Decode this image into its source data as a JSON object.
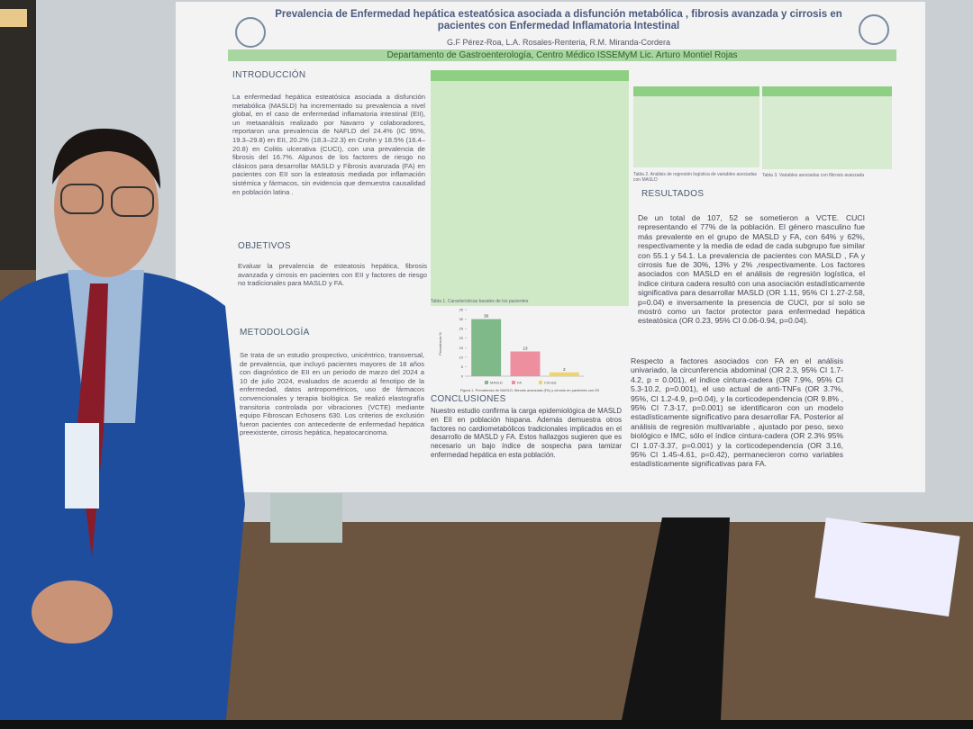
{
  "poster": {
    "title": "Prevalencia de Enfermedad hepática esteatósica asociada a disfunción metabólica , fibrosis avanzada y cirrosis en pacientes con Enfermedad Inflamatoria Intestinal",
    "authors": "G.F Pérez-Roa, L.A. Rosales-Renteria, R.M. Miranda-Cordera",
    "department": "Departamento de Gastroenterología, Centro Médico ISSEMyM Lic. Arturo Montiel Rojas",
    "introduccion": {
      "heading": "INTRODUCCIÓN",
      "text": "La enfermedad hepática esteatósica asociada a disfunción metabólica (MASLD) ha incrementado su prevalencia a nivel global, en el caso de enfermedad inflamatoria intestinal (EII), un metaanálisis realizado por Navarro y colaboradores, reportaron una prevalencia de NAFLD del 24.4% (IC 95%, 19.3–29.8) en EII, 20.2% (18.3–22.3) en Crohn y 18.5% (16.4–20.8) en Colitis ulcerativa (CUCI), con una prevalencia de fibrosis del 16.7%. Algunos de los factores de riesgo no clásicos para desarrollar MASLD y Fibrosis avanzada (FA) en pacientes con EII son la esteatosis mediada por inflamación sistémica y fármacos, sin evidencia que demuestra causalidad en población latina ."
    },
    "objetivos": {
      "heading": "OBJETIVOS",
      "text": "Evaluar la prevalencia de esteatosis hepática, fibrosis avanzada y cirrosis en pacientes con EII y factores de riesgo no tradicionales para MASLD y FA."
    },
    "metodologia": {
      "heading": "METODOLOGÍA",
      "text": "Se trata de un estudio prospectivo, unicéntrico, transversal, de prevalencia, que incluyó pacientes mayores de 18 años con diagnóstico de EII en un periodo de marzo del 2024 a 10 de julio 2024, evaluados de acuerdo al fenotipo de la enfermedad, datos antropométricos, uso de fármacos convencionales y terapia biológica. Se realizó elastografía transitoria controlada por vibraciones (VCTE) mediante equipo Fibroscan Echosens 630. Los criterios de exclusión fueron pacientes con antecedente de enfermedad hepática preexistente, cirrosis hepática, hepatocarcinoma."
    },
    "resultados": {
      "heading": "RESULTADOS",
      "paragraphs": [
        "De un total de 107, 52 se sometieron a VCTE. CUCI representando el 77% de la población. El género masculino fue más prevalente en el grupo de MASLD y FA, con 64% y 62%, respectivamente y la media de edad de cada subgrupo fue similar con 55.1 y 54.1. La prevalencia de pacientes con MASLD , FA y cirrosis fue de 30%, 13% y 2% ,respectivamente. Los factores asociados con MASLD en el análisis de regresión logística, el índice cintura cadera resultó con una asociación estadísticamente significativa para desarrollar MASLD (OR 1.11, 95% CI 1.27-2.58, p=0.04) e inversamente la presencia de CUCI, por sí solo se mostró como un factor protector para enfermedad hepática esteatósica (OR 0.23, 95% CI 0.06-0.94, p=0.04).",
        "Respecto a factores asociados con FA en el análisis univariado, la circunferencia abdominal (OR 2.3, 95% CI 1.7-4.2, p = 0.001), el índice cintura-cadera (OR 7.9%, 95% CI 5.3-10.2, p=0.001), el uso actual de anti-TNFs (OR 3.7%, 95%, CI 1.2-4.9, p=0.04), y la corticodependencia (OR 9.8% , 95% CI 7.3-17, p=0.001) se identificaron con un modelo estadísticamente significativo para desarrollar FA. Posterior al análisis de regresión multivariable , ajustado por peso, sexo biológico e IMC, sólo el índice cintura-cadera (OR 2.3% 95% CI 1.07-3.37, p=0.001) y la corticodependencia (OR 3.16, 95% CI 1.45-4.61, p=0.42), permanecieron como variables estadísticamente significativas para FA."
      ]
    },
    "conclusiones": {
      "heading": "CONCLUSIONES",
      "text": "Nuestro estudio confirma la carga epidemiológica de MASLD en EII en población hispana. Además demuestra otros factores no cardiometabólicos tradicionales implicados en el desarrollo de MASLD y FA. Estos hallazgos sugieren que es necesario un bajo índice de sospecha para tamizar enfermedad hepática en esta población."
    },
    "table1_caption": "Tabla 1. Características basales de los pacientes",
    "table2_caption": "Tabla 2. Análisis de regresión logística de variables asociadas con MASLD",
    "table3_caption": "Tabla 3. Variables asociadas con fibrosis avanzada",
    "figure": {
      "ylabel": "Prevalencia %",
      "categories": [
        "MASLD",
        "FA",
        "Cirrosis"
      ],
      "values": [
        30,
        13,
        2
      ],
      "colors": [
        "#7fb98a",
        "#ee8fa0",
        "#f0d36a"
      ],
      "ylim": [
        0,
        35
      ],
      "yticks": [
        0,
        5,
        10,
        15,
        20,
        25,
        30,
        35
      ],
      "caption": "Figura 1. Prevalencia de MASLD, fibrosis avanzada (FA) y cirrosis en pacientes con EII"
    }
  }
}
